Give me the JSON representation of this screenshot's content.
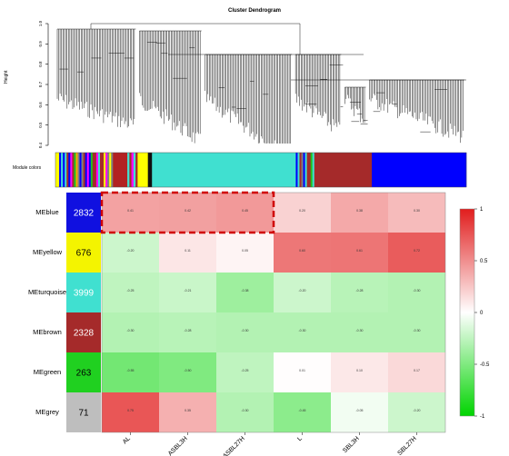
{
  "chart_data": [
    {
      "type": "dendrogram",
      "title": "Cluster Dendrogram",
      "ylabel": "Height",
      "yticks": [
        "1.0",
        "0.9",
        "0.8",
        "0.7",
        "0.6",
        "0.5",
        "0.4"
      ],
      "color_bar_label": "Module colors",
      "module_color_segments": [
        {
          "module": "mixed",
          "start": 0.0,
          "end": 0.14
        },
        {
          "module": "red",
          "start": 0.14,
          "end": 0.175
        },
        {
          "module": "mixed",
          "start": 0.175,
          "end": 0.2
        },
        {
          "module": "yellow",
          "start": 0.2,
          "end": 0.225
        },
        {
          "module": "black",
          "start": 0.225,
          "end": 0.235
        },
        {
          "module": "turquoise",
          "start": 0.235,
          "end": 0.585
        },
        {
          "module": "mixed",
          "start": 0.585,
          "end": 0.63
        },
        {
          "module": "brown",
          "start": 0.63,
          "end": 0.77
        },
        {
          "module": "blue",
          "start": 0.77,
          "end": 1.0
        }
      ]
    },
    {
      "type": "heatmap",
      "rows": [
        {
          "name": "MEblue",
          "count": "2832",
          "color": "#1010e0",
          "text_color": "#ffffff"
        },
        {
          "name": "MEyellow",
          "count": "676",
          "color": "#f4f400",
          "text_color": "#000000"
        },
        {
          "name": "MEturquoise",
          "count": "3999",
          "color": "#40e0d0",
          "text_color": "#ffffff"
        },
        {
          "name": "MEbrown",
          "count": "2328",
          "color": "#a52a2a",
          "text_color": "#ffffff"
        },
        {
          "name": "MEgreen",
          "count": "263",
          "color": "#20d020",
          "text_color": "#000000"
        },
        {
          "name": "MEgrey",
          "count": "71",
          "color": "#bebebe",
          "text_color": "#000000"
        }
      ],
      "columns": [
        "AL",
        "ASBL3H",
        "ASBL27H",
        "L",
        "SBL3H",
        "SBL27H"
      ],
      "values": [
        [
          0.41,
          0.42,
          0.45,
          0.2,
          0.38,
          0.3
        ],
        [
          -0.2,
          0.11,
          0.05,
          0.6,
          0.61,
          0.72
        ],
        [
          -0.25,
          -0.21,
          -0.38,
          -0.2,
          -0.28,
          -0.3
        ],
        [
          -0.3,
          -0.28,
          -0.3,
          -0.3,
          -0.3,
          -0.3
        ],
        [
          -0.55,
          -0.5,
          -0.25,
          0.01,
          0.1,
          0.17
        ],
        [
          0.75,
          0.35,
          -0.3,
          -0.45,
          -0.05,
          -0.2
        ]
      ],
      "highlight_box": {
        "row": 0,
        "col_start": 0,
        "col_end": 2
      },
      "colorscale": {
        "min": -1,
        "max": 1,
        "low_color": "#00d400",
        "mid_color": "#ffffff",
        "high_color": "#e11d1d"
      },
      "legend_ticks": [
        "1",
        "0.5",
        "0",
        "-0.5",
        "-1"
      ]
    }
  ]
}
